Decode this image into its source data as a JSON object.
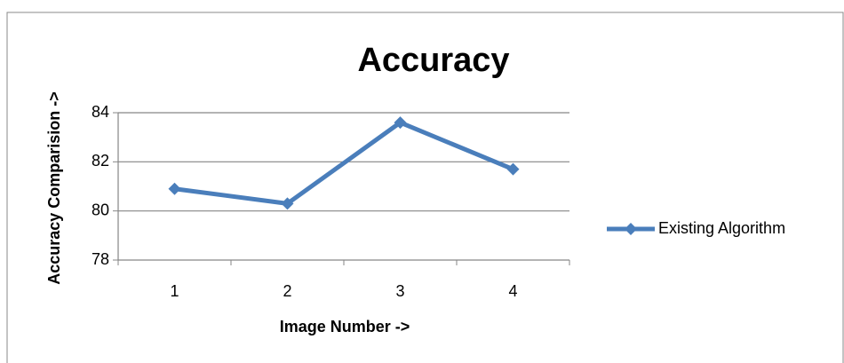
{
  "chart_data": {
    "type": "line",
    "title": "Accuracy",
    "x_label": "Image Number ->",
    "y_label": "Accuracy Comparision ->",
    "categories": [
      "1",
      "2",
      "3",
      "4"
    ],
    "series": [
      {
        "name": "Existing Algorithm",
        "color": "#4a7ebb",
        "values": [
          80.9,
          80.3,
          83.6,
          81.7
        ]
      }
    ],
    "ylim": [
      78,
      84
    ],
    "yticks": [
      78,
      80,
      82,
      84
    ],
    "grid": true,
    "legend": "right"
  }
}
